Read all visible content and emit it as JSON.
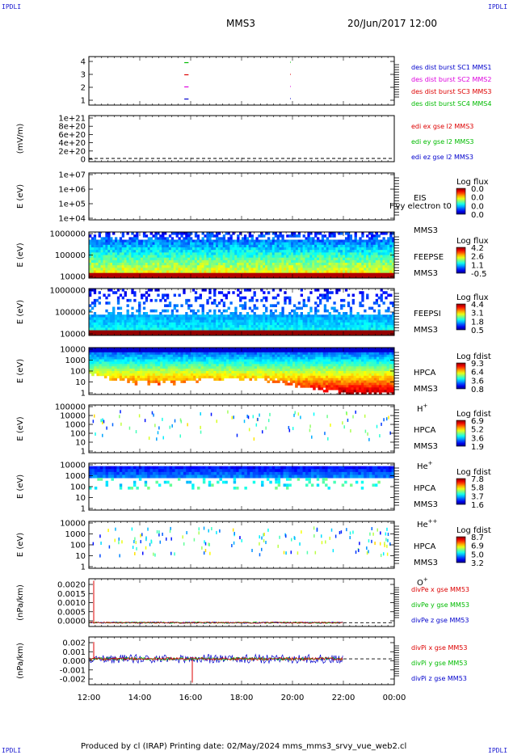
{
  "header": {
    "logo_left": "IPDLI",
    "logo_right": "IPDLI",
    "spacecraft": "MMS3",
    "datetime": "20/Jun/2017 12:00"
  },
  "footer": {
    "logo_left": "IPDLI",
    "logo_right": "IPDLI",
    "produced_by": "Produced by cl (IRAP)   Printing date: 02/May/2024   mms_mms3_srvy_vue_web2.cl"
  },
  "time_axis": {
    "start": "12:00",
    "end": "00:00",
    "ticks": [
      "12:00",
      "14:00",
      "16:00",
      "18:00",
      "20:00",
      "22:00",
      "00:00"
    ]
  },
  "colors": {
    "red": "#dd0000",
    "green": "#00bb00",
    "blue": "#0000cc",
    "magenta": "#dd00dd"
  },
  "chart_data": [
    {
      "type": "line",
      "panel": "burst",
      "yticks": [
        "4",
        "3",
        "2",
        "1"
      ],
      "ylim": [
        0.5,
        4.5
      ],
      "series": [
        {
          "name": "des dist burst SC1 MMS1",
          "color": "#0000cc",
          "y": 1,
          "segments": [
            [
              "15:45",
              "15:55"
            ]
          ]
        },
        {
          "name": "des dist burst SC2 MMS2",
          "color": "#dd00dd",
          "y": 2,
          "segments": [
            [
              "15:45",
              "15:55"
            ]
          ]
        },
        {
          "name": "des dist burst SC3 MMS3",
          "color": "#dd0000",
          "y": 3,
          "segments": [
            [
              "15:45",
              "15:55"
            ]
          ]
        },
        {
          "name": "des dist burst SC4 MMS4",
          "color": "#00bb00",
          "y": 4,
          "segments": [
            [
              "15:45",
              "15:55"
            ]
          ]
        }
      ]
    },
    {
      "type": "line",
      "panel": "edi",
      "ylabel": "(mV/m)",
      "yticks": [
        "1e+21",
        "8e+20",
        "6e+20",
        "4e+20",
        "2e+20",
        "0"
      ],
      "ylim": [
        0,
        1e+21
      ],
      "series": [
        {
          "name": "edi ex gse l2 MMS3",
          "color": "#dd0000"
        },
        {
          "name": "edi ey gse l2 MMS3",
          "color": "#00bb00"
        },
        {
          "name": "edi ez gse l2 MMS3",
          "color": "#0000cc"
        }
      ]
    },
    {
      "type": "heatmap",
      "panel": "eis",
      "ylabel": "E (eV)",
      "yticks": [
        "1e+07",
        "1e+06",
        "1e+05",
        "1e+04"
      ],
      "labels": [
        "EIS",
        "Hvy electron t0",
        "MMS3"
      ],
      "colorbar": {
        "title": "Log flux",
        "ticks": [
          "0.0",
          "0.0",
          "0.0",
          "0.0"
        ]
      }
    },
    {
      "type": "heatmap",
      "panel": "feepse",
      "ylabel": "E (eV)",
      "yticks": [
        "1000000",
        "100000",
        "10000"
      ],
      "labels": [
        "FEEPSE",
        "MMS3"
      ],
      "colorbar": {
        "title": "Log flux",
        "ticks": [
          "4.2",
          "2.6",
          "1.1",
          "-0.5"
        ]
      }
    },
    {
      "type": "heatmap",
      "panel": "feepsi",
      "ylabel": "E (eV)",
      "yticks": [
        "1000000",
        "100000",
        "10000"
      ],
      "labels": [
        "FEEPSI",
        "MMS3"
      ],
      "colorbar": {
        "title": "Log flux",
        "ticks": [
          "4.4",
          "3.1",
          "1.8",
          "0.5"
        ]
      }
    },
    {
      "type": "heatmap",
      "panel": "hpca_h",
      "ylabel": "E (eV)",
      "yticks": [
        "10000",
        "1000",
        "100",
        "10",
        "1"
      ],
      "labels": [
        "HPCA",
        "MMS3"
      ],
      "species": "H",
      "charge": "+",
      "colorbar": {
        "title": "Log fdist",
        "ticks": [
          "9.3",
          "6.4",
          "3.6",
          "0.8"
        ]
      }
    },
    {
      "type": "heatmap",
      "panel": "hpca_he",
      "ylabel": "E (eV)",
      "yticks": [
        "100000",
        "10000",
        "1000",
        "100",
        "10",
        "1"
      ],
      "labels": [
        "HPCA",
        "MMS3"
      ],
      "species": "He",
      "charge": "+",
      "colorbar": {
        "title": "Log fdist",
        "ticks": [
          "6.9",
          "5.2",
          "3.6",
          "1.9"
        ]
      }
    },
    {
      "type": "heatmap",
      "panel": "hpca_he2",
      "ylabel": "E (eV)",
      "yticks": [
        "10000",
        "1000",
        "100",
        "10",
        "1"
      ],
      "labels": [
        "HPCA",
        "MMS3"
      ],
      "species": "He",
      "charge": "++",
      "colorbar": {
        "title": "Log fdist",
        "ticks": [
          "7.8",
          "5.8",
          "3.7",
          "1.6"
        ]
      }
    },
    {
      "type": "heatmap",
      "panel": "hpca_o",
      "ylabel": "E (eV)",
      "yticks": [
        "10000",
        "1000",
        "100",
        "10",
        "1"
      ],
      "labels": [
        "HPCA",
        "MMS3"
      ],
      "species": "O",
      "charge": "+",
      "colorbar": {
        "title": "Log fdist",
        "ticks": [
          "8.7",
          "6.9",
          "5.0",
          "3.2"
        ]
      }
    },
    {
      "type": "line",
      "panel": "divpe",
      "ylabel": "(nPa/km)",
      "yticks": [
        "0.0020",
        "0.0015",
        "0.0010",
        "0.0005",
        "0.0000"
      ],
      "ylim": [
        -0.0002,
        0.0023
      ],
      "series": [
        {
          "name": "divPe x gse MM53",
          "color": "#dd0000"
        },
        {
          "name": "divPe y gse MM53",
          "color": "#00bb00"
        },
        {
          "name": "divPe z gse MM53",
          "color": "#0000cc"
        }
      ]
    },
    {
      "type": "line",
      "panel": "divpi",
      "ylabel": "(nPa/km)",
      "yticks": [
        "0.002",
        "0.001",
        "0.000",
        "-0.001",
        "-0.002"
      ],
      "ylim": [
        -0.0026,
        0.0022
      ],
      "series": [
        {
          "name": "divPi x gse MM53",
          "color": "#dd0000"
        },
        {
          "name": "divPi y gse MM53",
          "color": "#00bb00"
        },
        {
          "name": "divPi z gse MM53",
          "color": "#0000cc"
        }
      ]
    }
  ]
}
